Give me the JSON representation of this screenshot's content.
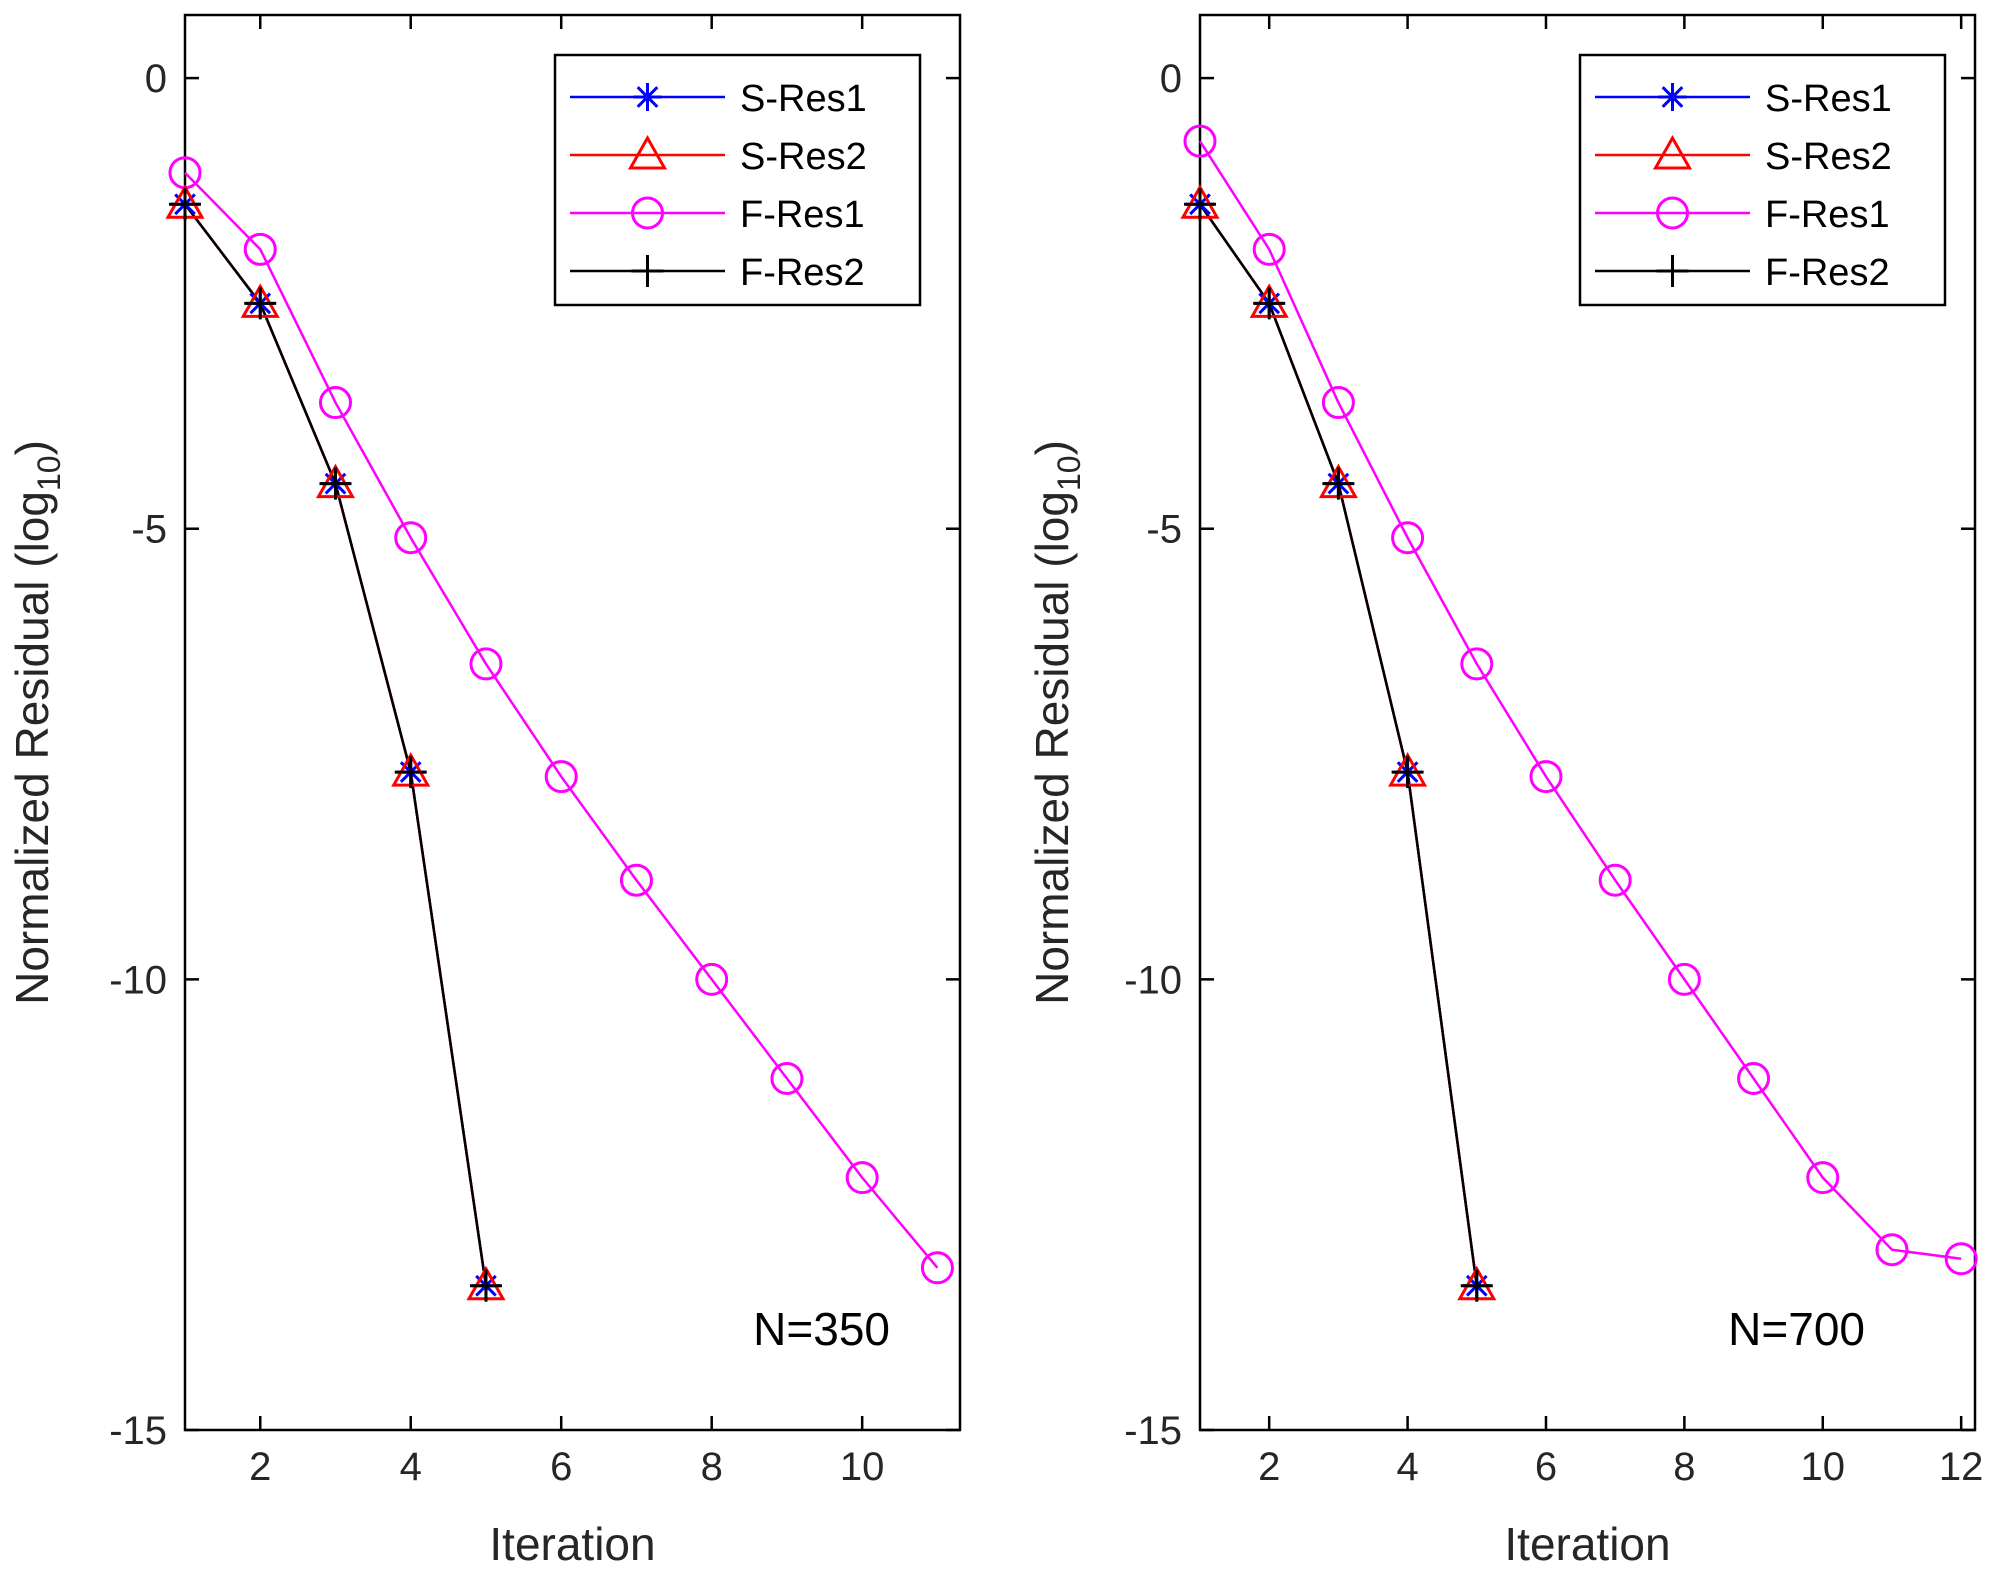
{
  "figure": {
    "background": "#ffffff"
  },
  "chart_data": [
    {
      "type": "line",
      "title": "",
      "annotation": "N=350",
      "xlabel": "Iteration",
      "ylabel": "Normalized Residual (log",
      "ylabel_sub": "10",
      "ylabel_close": ")",
      "xlim": [
        1,
        11.3
      ],
      "ylim": [
        -15,
        0.7
      ],
      "xticks": [
        2,
        4,
        6,
        8,
        10
      ],
      "xtick_labels": [
        "2",
        "4",
        "6",
        "8",
        "10"
      ],
      "yticks": [
        0,
        -5,
        -10,
        -15
      ],
      "ytick_labels": [
        "0",
        "-5",
        "-10",
        "-15"
      ],
      "grid": false,
      "legend_position": "top-right",
      "series": [
        {
          "name": "S-Res1",
          "color": "#0000ff",
          "marker": "asterisk",
          "x": [
            1,
            2,
            3,
            4,
            5
          ],
          "y": [
            -1.4,
            -2.5,
            -4.5,
            -7.7,
            -13.4
          ]
        },
        {
          "name": "S-Res2",
          "color": "#ff0000",
          "marker": "triangle",
          "x": [
            1,
            2,
            3,
            4,
            5
          ],
          "y": [
            -1.4,
            -2.5,
            -4.5,
            -7.7,
            -13.4
          ]
        },
        {
          "name": "F-Res1",
          "color": "#ff00ff",
          "marker": "circle",
          "x": [
            1,
            2,
            3,
            4,
            5,
            6,
            7,
            8,
            9,
            10,
            11
          ],
          "y": [
            -1.05,
            -1.9,
            -3.6,
            -5.1,
            -6.5,
            -7.75,
            -8.9,
            -10.0,
            -11.1,
            -12.2,
            -13.2
          ]
        },
        {
          "name": "F-Res2",
          "color": "#000000",
          "marker": "plus",
          "x": [
            1,
            2,
            3,
            4,
            5
          ],
          "y": [
            -1.4,
            -2.5,
            -4.5,
            -7.7,
            -13.4
          ]
        }
      ]
    },
    {
      "type": "line",
      "title": "",
      "annotation": "N=700",
      "xlabel": "Iteration",
      "ylabel": "Normalized Residual (log",
      "ylabel_sub": "10",
      "ylabel_close": ")",
      "xlim": [
        1,
        12.2
      ],
      "ylim": [
        -15,
        0.7
      ],
      "xticks": [
        2,
        4,
        6,
        8,
        10,
        12
      ],
      "xtick_labels": [
        "2",
        "4",
        "6",
        "8",
        "10",
        "12"
      ],
      "yticks": [
        0,
        -5,
        -10,
        -15
      ],
      "ytick_labels": [
        "0",
        "-5",
        "-10",
        "-15"
      ],
      "grid": false,
      "legend_position": "top-right",
      "series": [
        {
          "name": "S-Res1",
          "color": "#0000ff",
          "marker": "asterisk",
          "x": [
            1,
            2,
            3,
            4,
            5
          ],
          "y": [
            -1.4,
            -2.5,
            -4.5,
            -7.7,
            -13.4
          ]
        },
        {
          "name": "S-Res2",
          "color": "#ff0000",
          "marker": "triangle",
          "x": [
            1,
            2,
            3,
            4,
            5
          ],
          "y": [
            -1.4,
            -2.5,
            -4.5,
            -7.7,
            -13.4
          ]
        },
        {
          "name": "F-Res1",
          "color": "#ff00ff",
          "marker": "circle",
          "x": [
            1,
            2,
            3,
            4,
            5,
            6,
            7,
            8,
            9,
            10,
            11,
            12
          ],
          "y": [
            -0.7,
            -1.9,
            -3.6,
            -5.1,
            -6.5,
            -7.75,
            -8.9,
            -10.0,
            -11.1,
            -12.2,
            -13.0,
            -13.1
          ]
        },
        {
          "name": "F-Res2",
          "color": "#000000",
          "marker": "plus",
          "x": [
            1,
            2,
            3,
            4,
            5
          ],
          "y": [
            -1.4,
            -2.5,
            -4.5,
            -7.7,
            -13.4
          ]
        }
      ]
    }
  ]
}
